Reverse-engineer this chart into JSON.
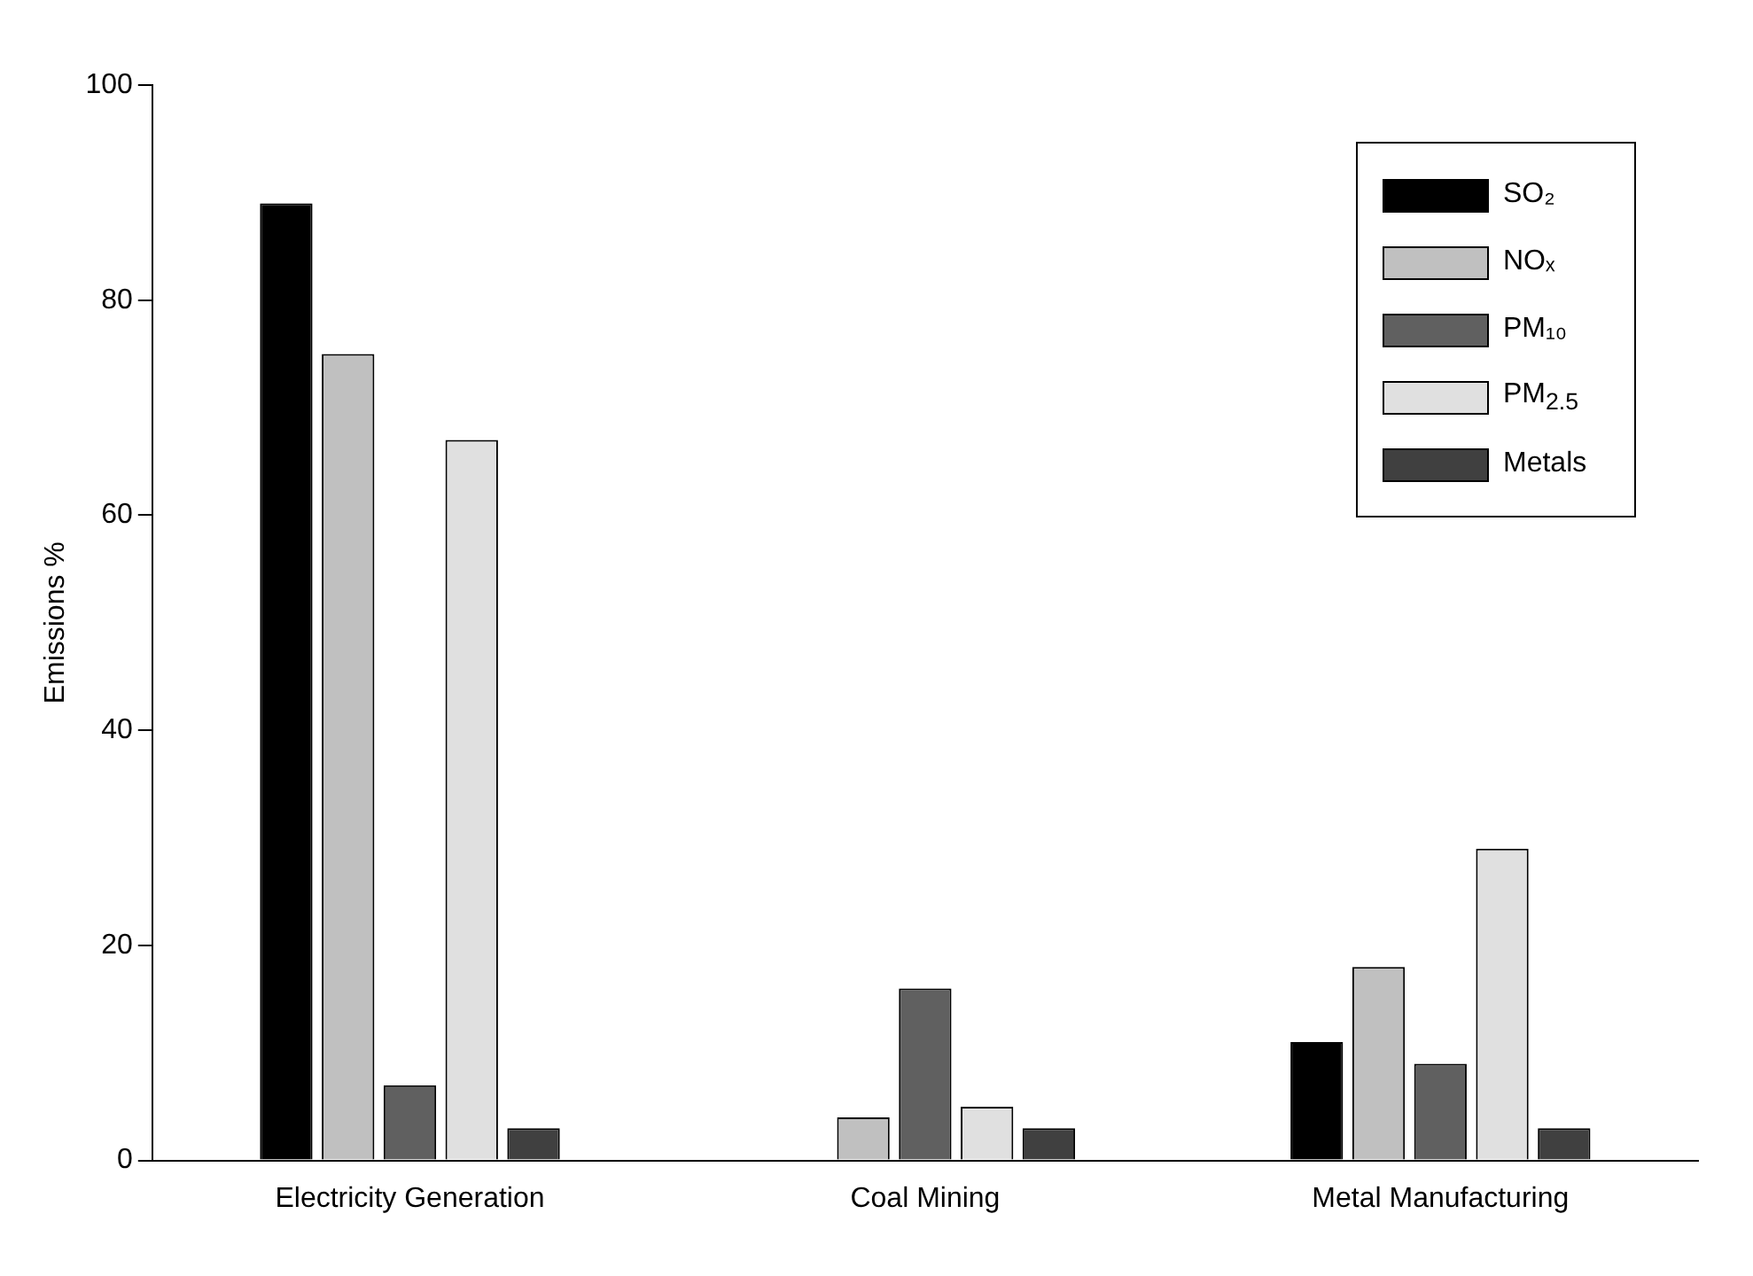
{
  "chart_data": {
    "type": "bar",
    "categories": [
      "Electricity Generation",
      "Coal Mining",
      "Metal Manufacturing"
    ],
    "ylabel": "Emissions %",
    "series": [
      {
        "name": "SO₂",
        "color": "#000000",
        "values": [
          89,
          0,
          11
        ]
      },
      {
        "name": "NOₓ",
        "color": "#c0c0c0",
        "values": [
          75,
          4,
          18
        ]
      },
      {
        "name": "PM₁₀",
        "color": "#606060",
        "values": [
          7,
          16,
          9
        ]
      },
      {
        "name": "PM$_{2.5}$",
        "color": "#e0e0e0",
        "values": [
          67,
          5,
          29
        ]
      },
      {
        "name": "Metals",
        "color": "#404040",
        "values": [
          3,
          3,
          3
        ]
      }
    ],
    "ylim": [
      0,
      100
    ],
    "yticks": [
      0,
      20,
      40,
      60,
      80,
      100
    ],
    "grid": false,
    "legend": "top right"
  }
}
